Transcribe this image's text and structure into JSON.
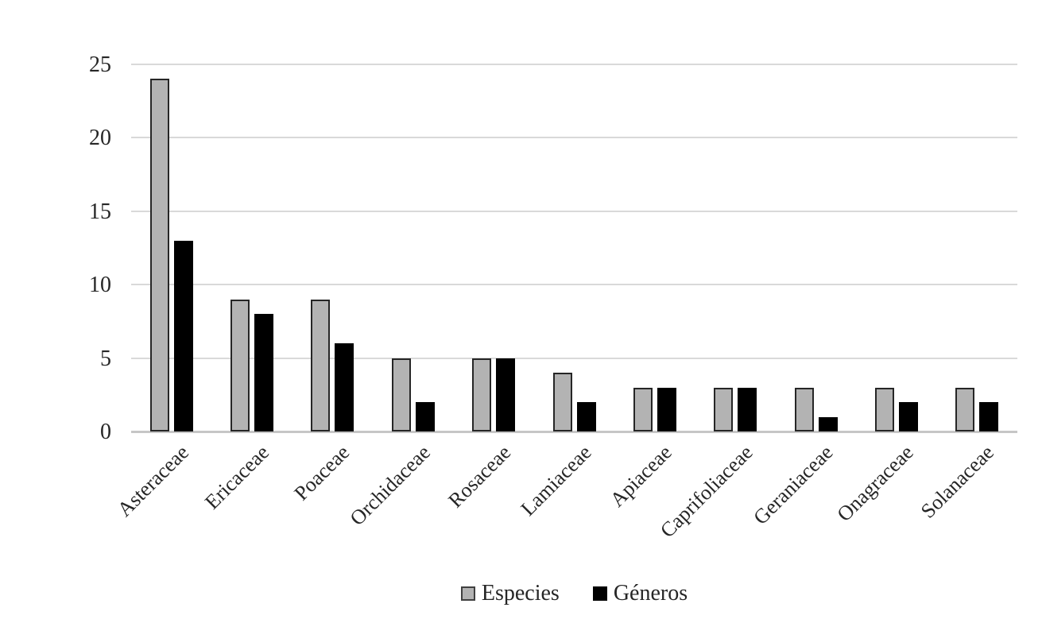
{
  "chart_data": {
    "type": "bar",
    "title": "",
    "xlabel": "",
    "ylabel": "",
    "categories": [
      "Asteraceae",
      "Ericaceae",
      "Poaceae",
      "Orchidaceae",
      "Rosaceae",
      "Lamiaceae",
      "Apiaceae",
      "Caprifoliaceae",
      "Geraniaceae",
      "Onagraceae",
      "Solanaceae"
    ],
    "series": [
      {
        "name": "Especies",
        "color": "#b3b3b3",
        "values": [
          24,
          9,
          9,
          5,
          5,
          4,
          3,
          3,
          3,
          3,
          3
        ]
      },
      {
        "name": "Géneros",
        "color": "#000000",
        "values": [
          13,
          8,
          6,
          2,
          5,
          2,
          3,
          3,
          1,
          2,
          2
        ]
      }
    ],
    "ylim": [
      0,
      25
    ],
    "yticks": [
      0,
      5,
      10,
      15,
      20,
      25
    ],
    "grid": true,
    "gridline_color": "#d9d9d9",
    "axis_line_color": "#c6c6c6",
    "text_color": "#262626",
    "legend_position": "bottom"
  }
}
